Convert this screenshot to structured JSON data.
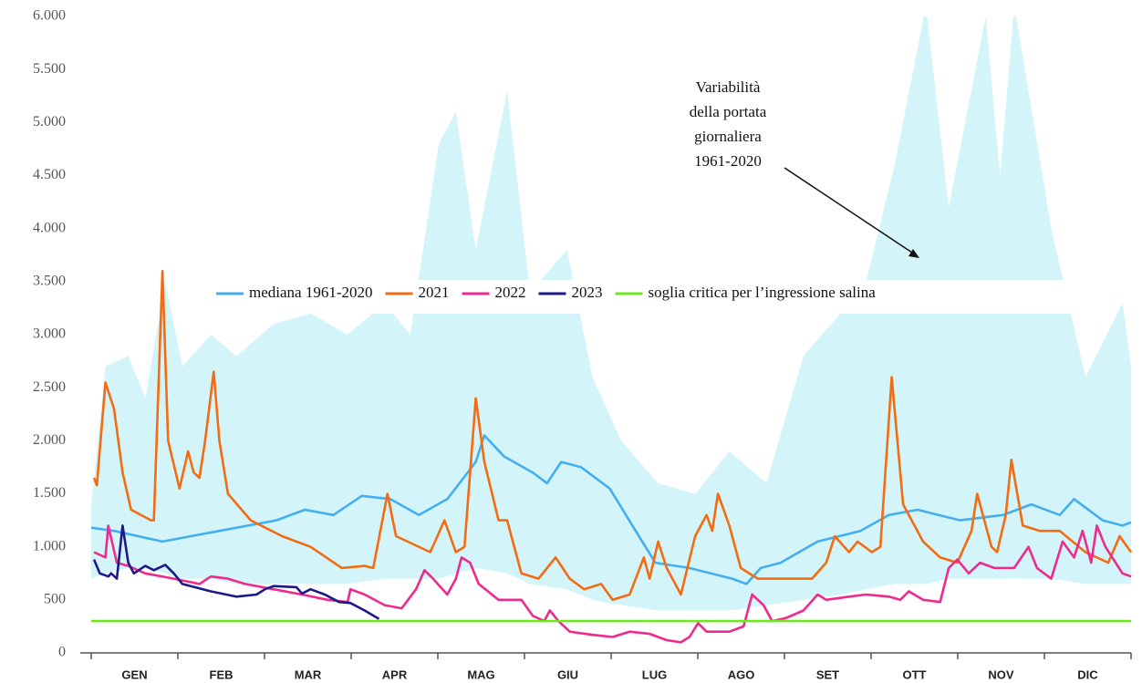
{
  "chart_data": {
    "type": "line",
    "categories": [
      "GEN",
      "FEB",
      "MAR",
      "APR",
      "MAG",
      "GIU",
      "LUG",
      "AGO",
      "SET",
      "OTT",
      "NOV",
      "DIC"
    ],
    "xlim": [
      0,
      365
    ],
    "ylim": [
      0,
      6000
    ],
    "yticks": [
      0,
      500,
      {
        "value": 1000,
        "label": "1.000"
      },
      {
        "value": 1500,
        "label": "1.500"
      },
      {
        "value": 2000,
        "label": "2.000"
      },
      {
        "value": 2500,
        "label": "2.500"
      },
      {
        "value": 3000,
        "label": "3.000"
      },
      {
        "value": 3500,
        "label": "3.500"
      },
      {
        "value": 4000,
        "label": "4.000"
      },
      {
        "value": 4500,
        "label": "4.500"
      },
      {
        "value": 5000,
        "label": "5.000"
      },
      {
        "value": 5500,
        "label": "5.500"
      },
      {
        "value": 6000,
        "label": "6.000"
      }
    ],
    "grid": false,
    "legend": "center",
    "annotation": [
      "Variabilità",
      "della portata",
      "giornaliera",
      "1961-2020"
    ],
    "band": {
      "color": "#d3f5fa",
      "x": [
        0,
        5,
        13,
        19,
        26,
        32,
        42,
        51,
        64,
        77,
        90,
        103,
        112,
        122,
        128,
        135,
        146,
        154,
        167,
        176,
        186,
        199,
        212,
        224,
        237,
        250,
        263,
        272,
        282,
        293,
        301,
        314,
        319,
        324,
        337,
        349,
        362,
        365
      ],
      "low": [
        700,
        750,
        800,
        800,
        750,
        700,
        700,
        650,
        650,
        650,
        650,
        700,
        700,
        700,
        750,
        800,
        750,
        650,
        600,
        500,
        450,
        400,
        400,
        400,
        450,
        500,
        550,
        600,
        650,
        650,
        700,
        700,
        700,
        700,
        700,
        650,
        650,
        650
      ],
      "high": [
        1400,
        2700,
        2800,
        2400,
        3500,
        2700,
        3000,
        2800,
        3100,
        3200,
        3000,
        3300,
        3000,
        4800,
        5100,
        3800,
        5300,
        3400,
        3800,
        2600,
        2000,
        1600,
        1500,
        1900,
        1600,
        2800,
        3200,
        3500,
        4600,
        6100,
        4200,
        6000,
        4500,
        6100,
        4000,
        2600,
        3300,
        2700
      ]
    },
    "series": [
      {
        "name": "mediana 1961-2020",
        "color": "#45aef0",
        "x": [
          0,
          8,
          25,
          35,
          45,
          55,
          65,
          75,
          85,
          95,
          105,
          115,
          125,
          135,
          138,
          145,
          155,
          160,
          165,
          172,
          182,
          190,
          198,
          210,
          225,
          230,
          235,
          242,
          255,
          270,
          280,
          290,
          305,
          320,
          330,
          340,
          345,
          355,
          362,
          365
        ],
        "values": [
          1180,
          1150,
          1050,
          1100,
          1150,
          1200,
          1250,
          1350,
          1300,
          1480,
          1450,
          1300,
          1450,
          1800,
          2050,
          1850,
          1700,
          1600,
          1800,
          1750,
          1550,
          1200,
          850,
          800,
          700,
          650,
          800,
          850,
          1050,
          1150,
          1300,
          1350,
          1250,
          1300,
          1400,
          1300,
          1450,
          1250,
          1200,
          1230
        ]
      },
      {
        "name": "2021",
        "color": "#f36c12",
        "x": [
          1,
          2,
          5,
          8,
          11,
          14,
          21,
          22,
          25,
          27,
          31,
          34,
          36,
          38,
          40,
          43,
          45,
          48,
          56,
          67,
          77,
          88,
          96,
          99,
          104,
          107,
          119,
          124,
          128,
          131,
          135,
          138,
          143,
          146,
          151,
          157,
          163,
          168,
          173,
          179,
          183,
          189,
          194,
          196,
          199,
          202,
          207,
          212,
          216,
          218,
          220,
          224,
          228,
          234,
          244,
          253,
          258,
          261,
          266,
          269,
          274,
          277,
          281,
          285,
          292,
          298,
          304,
          309,
          311,
          316,
          318,
          321,
          323,
          327,
          333,
          340,
          349,
          357,
          361,
          365
        ],
        "values": [
          1650,
          1580,
          2550,
          2300,
          1700,
          1350,
          1250,
          1250,
          3600,
          2000,
          1550,
          1900,
          1700,
          1650,
          2000,
          2650,
          2000,
          1500,
          1250,
          1100,
          1000,
          800,
          820,
          800,
          1500,
          1100,
          950,
          1250,
          950,
          1000,
          2400,
          1800,
          1250,
          1250,
          750,
          700,
          900,
          700,
          600,
          650,
          500,
          550,
          900,
          700,
          1050,
          800,
          550,
          1100,
          1300,
          1150,
          1500,
          1200,
          800,
          700,
          700,
          700,
          850,
          1100,
          950,
          1050,
          950,
          1000,
          2600,
          1400,
          1050,
          900,
          850,
          1150,
          1500,
          1000,
          950,
          1300,
          1820,
          1200,
          1150,
          1150,
          950,
          850,
          1100,
          950
        ]
      },
      {
        "name": "2022",
        "color": "#ee2a8e",
        "x": [
          1,
          5,
          6,
          9,
          13,
          19,
          29,
          38,
          42,
          48,
          54,
          64,
          74,
          83,
          90,
          91,
          96,
          103,
          109,
          114,
          117,
          120,
          125,
          128,
          130,
          133,
          136,
          143,
          151,
          155,
          159,
          161,
          164,
          168,
          176,
          183,
          189,
          196,
          202,
          207,
          210,
          213,
          216,
          224,
          229,
          232,
          236,
          239,
          244,
          250,
          255,
          258,
          266,
          272,
          280,
          284,
          287,
          292,
          298,
          301,
          304,
          308,
          312,
          317,
          324,
          329,
          332,
          337,
          341,
          345,
          348,
          351,
          353,
          356,
          362,
          365
        ],
        "values": [
          950,
          900,
          1200,
          850,
          820,
          750,
          700,
          650,
          720,
          700,
          650,
          600,
          550,
          500,
          480,
          600,
          550,
          450,
          420,
          600,
          780,
          700,
          550,
          700,
          900,
          850,
          650,
          500,
          500,
          350,
          300,
          400,
          300,
          200,
          170,
          150,
          200,
          180,
          120,
          100,
          150,
          280,
          200,
          200,
          250,
          550,
          450,
          300,
          330,
          400,
          550,
          500,
          530,
          550,
          530,
          500,
          580,
          500,
          480,
          800,
          880,
          750,
          850,
          800,
          800,
          1000,
          800,
          700,
          1050,
          900,
          1150,
          850,
          1200,
          1000,
          750,
          720
        ]
      },
      {
        "name": "2023",
        "color": "#1c1a8a",
        "x": [
          1,
          3,
          6,
          7,
          9,
          11,
          13,
          15,
          19,
          22,
          26,
          29,
          32,
          42,
          51,
          58,
          61,
          64,
          72,
          74,
          77,
          82,
          87,
          91,
          96,
          101
        ],
        "values": [
          880,
          750,
          720,
          750,
          700,
          1200,
          850,
          750,
          820,
          780,
          830,
          750,
          650,
          580,
          530,
          550,
          600,
          630,
          620,
          560,
          600,
          550,
          480,
          470,
          400,
          320
        ]
      },
      {
        "name": "soglia critica per l’ingressione salina",
        "color": "#6ee81e",
        "x": [
          0,
          365
        ],
        "values": [
          300,
          300
        ]
      }
    ]
  }
}
